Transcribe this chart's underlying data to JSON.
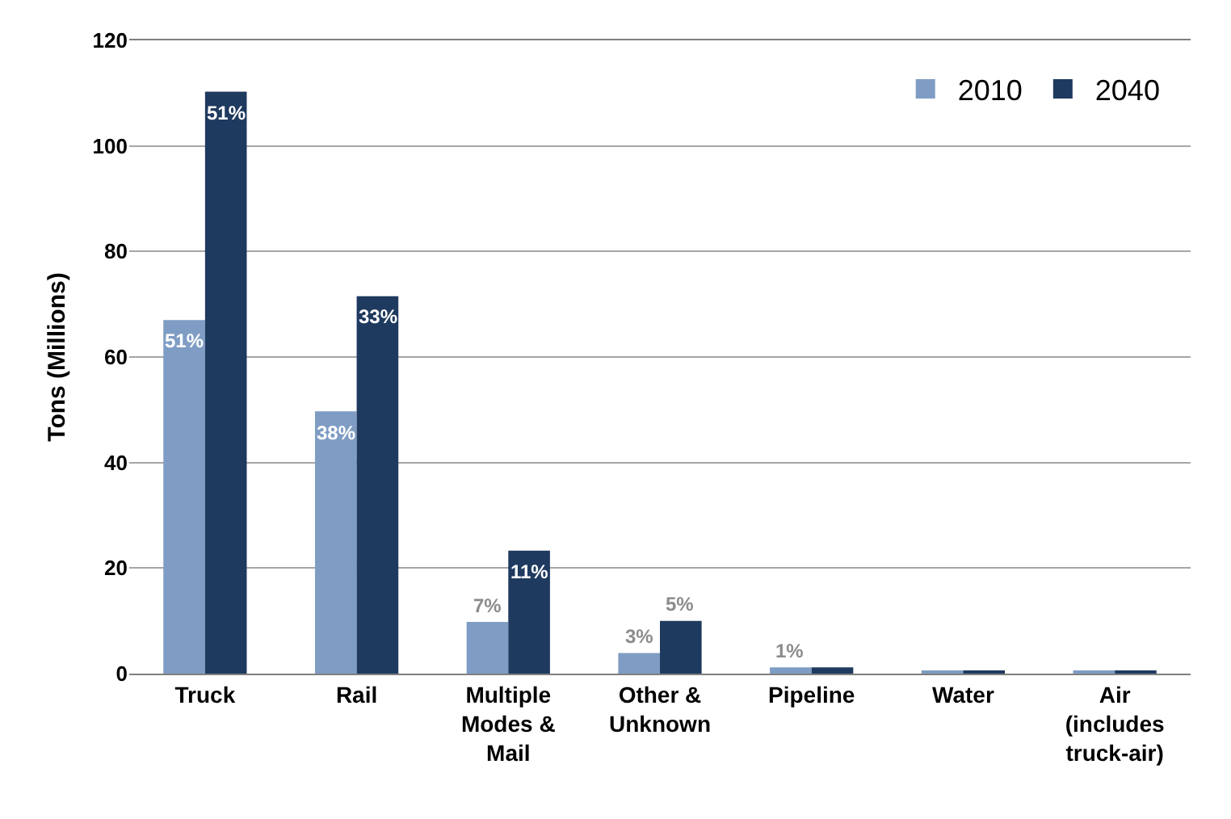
{
  "chart_data": {
    "type": "bar",
    "ylabel": "Tons (Millions)",
    "categories": [
      "Truck",
      "Rail",
      "Multiple Modes & Mail",
      "Other & Unknown",
      "Pipeline",
      "Water",
      "Air (includes truck-air)"
    ],
    "series": [
      {
        "name": "2010",
        "color": "#7f9dc4",
        "values": [
          67,
          49.7,
          9.8,
          3.9,
          1.2,
          0.6,
          0.6
        ]
      },
      {
        "name": "2040",
        "color": "#1f3a5f",
        "values": [
          110.3,
          71.5,
          23.3,
          10,
          1.2,
          0.6,
          0.6
        ]
      }
    ],
    "annotations": [
      {
        "text": "51%",
        "x": "Truck",
        "y": 67
      },
      {
        "text": "51%",
        "x": "Truck",
        "y": 110.3
      },
      {
        "text": "38%",
        "x": "Rail",
        "y": 49.7
      },
      {
        "text": "33%",
        "x": "Rail",
        "y": 71.5
      },
      {
        "text": "7%",
        "x": "Multiple Modes & Mail",
        "y": 9.8
      },
      {
        "text": "11%",
        "x": "Multiple Modes & Mail",
        "y": 23.3
      },
      {
        "text": "3%",
        "x": "Other & Unknown",
        "y": 3.9
      },
      {
        "text": "5%",
        "x": "Other & Unknown",
        "y": 10
      },
      {
        "text": "1%",
        "x": "Pipeline",
        "y": 1.2
      }
    ],
    "ylim": [
      0,
      120
    ],
    "yticks": [
      0,
      20,
      40,
      60,
      80,
      100,
      120
    ],
    "grid": "y",
    "legend": "top right"
  }
}
